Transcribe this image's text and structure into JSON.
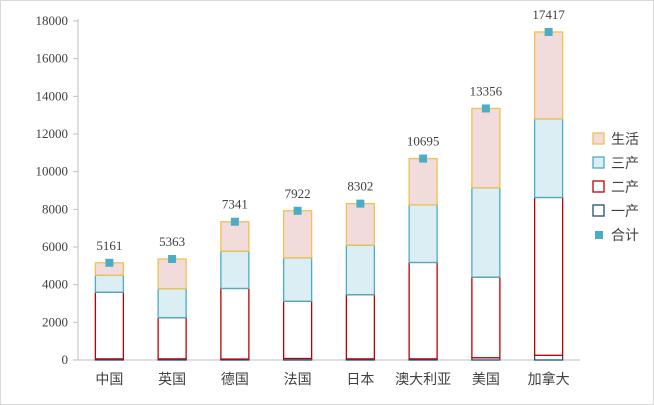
{
  "chart_data": {
    "type": "bar",
    "stacked": true,
    "categories": [
      "中国",
      "英国",
      "德国",
      "法国",
      "日本",
      "澳大利亚",
      "美国",
      "加拿大"
    ],
    "series": [
      {
        "name": "一产",
        "values": [
          60,
          60,
          50,
          80,
          60,
          60,
          120,
          250
        ],
        "color": "#1f4e79"
      },
      {
        "name": "二产",
        "values": [
          3540,
          2190,
          3750,
          3040,
          3410,
          5120,
          4280,
          8380
        ],
        "color": "#c00000"
      },
      {
        "name": "三产",
        "values": [
          900,
          1540,
          1980,
          2310,
          2630,
          3060,
          4750,
          4170
        ],
        "color": "#4bacc6"
      },
      {
        "name": "生活",
        "values": [
          661,
          1573,
          1561,
          2492,
          2202,
          2455,
          4206,
          4617
        ],
        "color": "#f2c04e"
      }
    ],
    "totals": {
      "name": "合计",
      "values": [
        5161,
        5363,
        7341,
        7922,
        8302,
        10695,
        13356,
        17417
      ],
      "labels": [
        "5161",
        "5363",
        "7341",
        "7922",
        "8302",
        "10695",
        "13356",
        "17417"
      ],
      "color": "#4bacc6"
    },
    "fills": {
      "生活": "#f2dcdb",
      "三产": "#dbeef3",
      "二产": "#ffffff",
      "一产": "#ffffff"
    },
    "ylim": [
      0,
      18000
    ],
    "yticks": [
      0,
      2000,
      4000,
      6000,
      8000,
      10000,
      12000,
      14000,
      16000,
      18000
    ],
    "ytick_labels": [
      "0",
      "2000",
      "4000",
      "6000",
      "8000",
      "10000",
      "12000",
      "14000",
      "16000",
      "18000"
    ],
    "grid": false,
    "legend_position": "right",
    "legend_order": [
      "生活",
      "三产",
      "二产",
      "一产",
      "合计"
    ],
    "title": "",
    "xlabel": "",
    "ylabel": ""
  }
}
